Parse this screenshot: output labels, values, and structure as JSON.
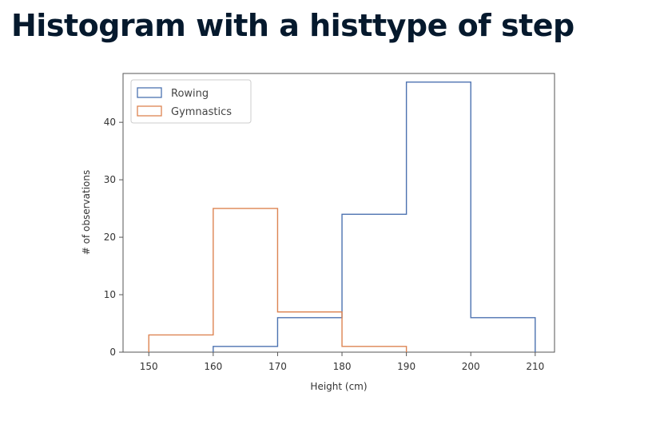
{
  "page": {
    "title": "Histogram with a histtype of step"
  },
  "chart_data": {
    "type": "histogram",
    "histtype": "step",
    "xlabel": "Height (cm)",
    "ylabel": "# of observations",
    "xlim": [
      146,
      213
    ],
    "ylim": [
      0,
      48.5
    ],
    "xticks": [
      150,
      160,
      170,
      180,
      190,
      200,
      210
    ],
    "yticks": [
      0,
      10,
      20,
      30,
      40
    ],
    "grid": false,
    "legend_position": "upper left",
    "series": [
      {
        "name": "Rowing",
        "color": "#4c72b0",
        "bin_edges": [
          160,
          170,
          180,
          190,
          200,
          210
        ],
        "counts": [
          1,
          6,
          24,
          47,
          6
        ]
      },
      {
        "name": "Gymnastics",
        "color": "#dd8452",
        "bin_edges": [
          150,
          160,
          170,
          180,
          190
        ],
        "counts": [
          3,
          25,
          7,
          1
        ]
      }
    ]
  }
}
